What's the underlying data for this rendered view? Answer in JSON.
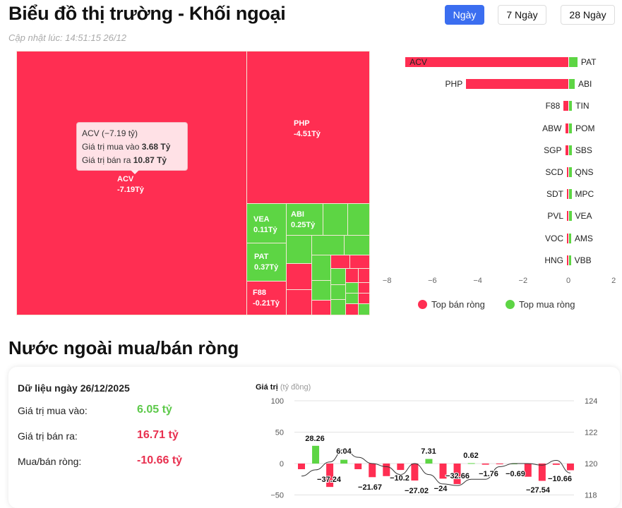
{
  "header": {
    "title": "Biểu đồ thị trường - Khối ngoại",
    "updated": "Cập nhật lúc: 14:51:15 26/12",
    "buttons": [
      "Ngày",
      "7 Ngày",
      "28 Ngày"
    ],
    "active": "Ngày"
  },
  "colors": {
    "sell": "#ff2e52",
    "buy": "#5dd544",
    "accent": "#3b6ef0"
  },
  "treemap": {
    "tiles": [
      {
        "code": "ACV",
        "value": "-7.19Tỷ"
      },
      {
        "code": "PHP",
        "value": "-4.51Tỷ"
      },
      {
        "code": "VEA",
        "value": "0.11Tỷ"
      },
      {
        "code": "ABI",
        "value": "0.25Tỷ"
      },
      {
        "code": "PAT",
        "value": "0.37Tỷ"
      },
      {
        "code": "F88",
        "value": "-0.21Tỷ"
      }
    ],
    "tooltip": {
      "title": "ACV (−7.19 tỷ)",
      "buy_label": "Giá trị mua vào",
      "buy_value": "3.68 Tỷ",
      "sell_label": "Giá trị bán ra",
      "sell_value": "10.87 Tỷ"
    }
  },
  "chart_data": [
    {
      "type": "bar",
      "orientation": "horizontal",
      "xlim": [
        -8,
        2
      ],
      "xticks": [
        "−8",
        "−6",
        "−4",
        "−2",
        "0",
        "2"
      ],
      "sell": {
        "name": "Top bán ròng",
        "codes": [
          "ACV",
          "PHP",
          "F88",
          "ABW",
          "SGP",
          "SCD",
          "SDT",
          "PVL",
          "VOC",
          "HNG"
        ],
        "values": [
          -7.19,
          -4.51,
          -0.21,
          -0.14,
          -0.14,
          -0.07,
          -0.04,
          -0.03,
          -0.03,
          -0.02
        ]
      },
      "buy": {
        "name": "Top mua ròng",
        "codes": [
          "PAT",
          "ABI",
          "TIN",
          "POM",
          "SBS",
          "QNS",
          "MPC",
          "VEA",
          "AMS",
          "VBB"
        ],
        "values": [
          0.37,
          0.25,
          0.13,
          0.13,
          0.12,
          0.11,
          0.11,
          0.11,
          0.09,
          0.08
        ]
      },
      "legend": "bottom"
    },
    {
      "type": "bar+line",
      "ylabel": "Giá trị",
      "yunit": "(tỷ đồng)",
      "ylim": [
        -50,
        100
      ],
      "yticks": [
        "100",
        "50",
        "0",
        "−50"
      ],
      "y2lim": [
        118,
        124
      ],
      "y2ticks": [
        "124",
        "122",
        "120",
        "118"
      ],
      "values": [
        -9,
        28.26,
        -37.24,
        6.04,
        -9,
        -21.67,
        -20,
        -10.2,
        -27.02,
        7.31,
        -24,
        -32.66,
        0.62,
        -1.76,
        -0.69,
        0,
        -21,
        -27.54,
        -2,
        -10.66
      ],
      "labels": [
        null,
        "28.26",
        "−37.24",
        "6.04",
        null,
        "−21.67",
        null,
        "−10.2",
        "−27.02",
        "7.31",
        "−24",
        "−32.66",
        "0.62",
        "−1.76",
        "−0.69",
        null,
        null,
        "−27.54",
        null,
        "−10.66"
      ],
      "line": [
        119.2,
        119.6,
        120.1,
        120.9,
        120.4,
        120.0,
        119.8,
        119.3,
        120.0,
        119.3,
        118.7,
        118.6,
        119.0,
        119.0,
        119.8,
        120.0,
        120.0,
        119.9,
        120.2,
        119.4
      ]
    }
  ],
  "section2": {
    "title": "Nước ngoài mua/bán ròng",
    "date_label": "Dữ liệu ngày 26/12/2025",
    "buy_label": "Giá trị mua vào:",
    "buy_value": "6.05 tỷ",
    "sell_label": "Giá trị bán ra:",
    "sell_value": "16.71 tỷ",
    "net_label": "Mua/bán ròng:",
    "net_value": "-10.66 tỷ"
  }
}
